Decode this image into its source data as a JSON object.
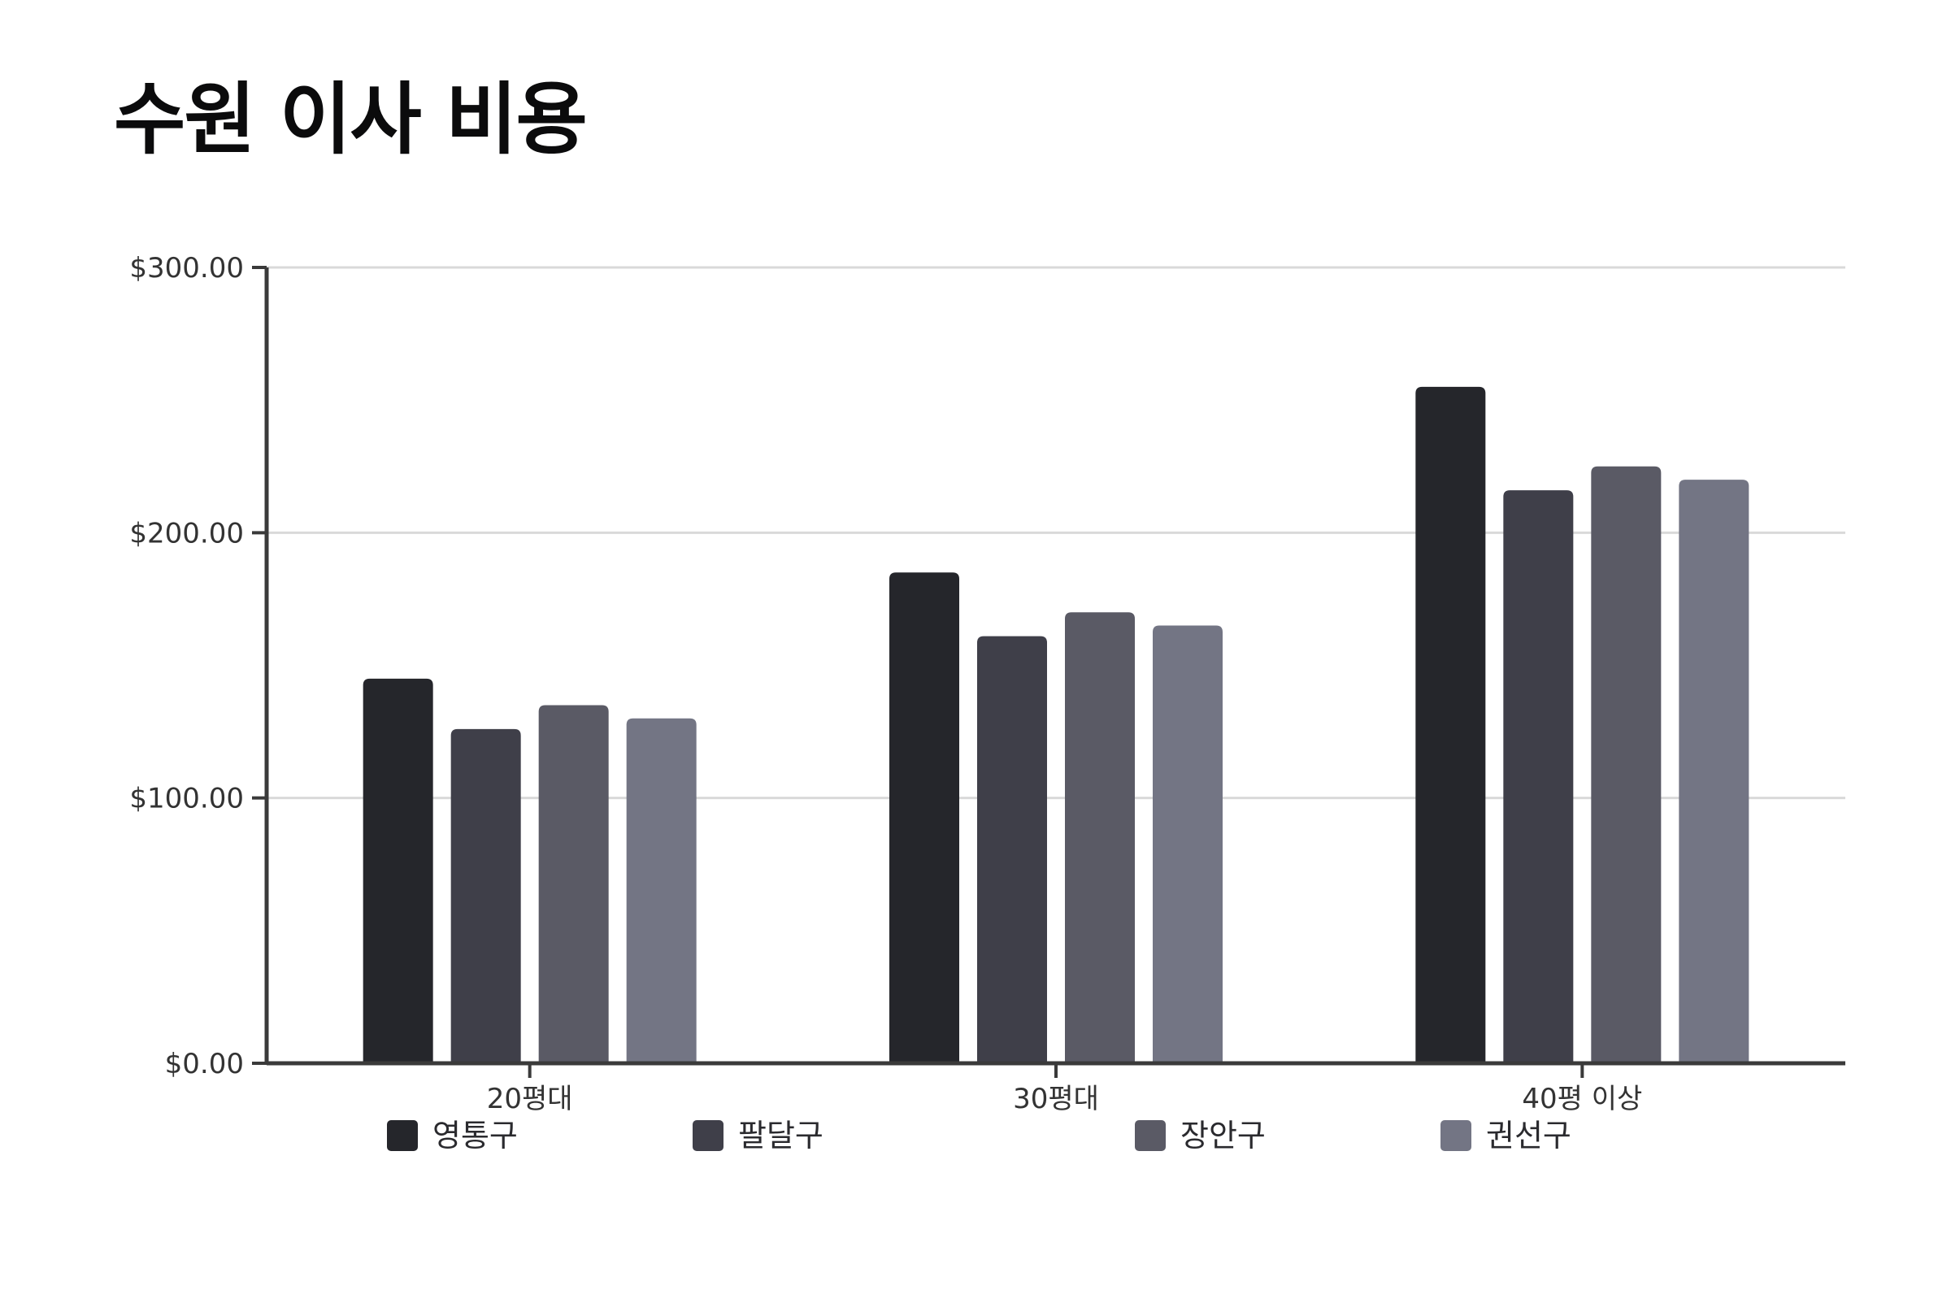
{
  "chart_data": {
    "type": "bar",
    "title": "수원 이사 비용",
    "xlabel": "",
    "ylabel": "",
    "categories": [
      "20평대",
      "30평대",
      "40평 이상"
    ],
    "series": [
      {
        "name": "영통구",
        "color": "#25262b",
        "values": [
          145,
          185,
          255
        ]
      },
      {
        "name": "팔달구",
        "color": "#3f3f49",
        "values": [
          126,
          161,
          216
        ]
      },
      {
        "name": "장안구",
        "color": "#5a5a65",
        "values": [
          135,
          170,
          225
        ]
      },
      {
        "name": "권선구",
        "color": "#737584",
        "values": [
          130,
          165,
          220
        ]
      }
    ],
    "ylim": [
      0,
      300
    ],
    "yticks": [
      {
        "value": 0,
        "label": "$0.00"
      },
      {
        "value": 100,
        "label": "$100.00"
      },
      {
        "value": 200,
        "label": "$200.00"
      },
      {
        "value": 300,
        "label": "$300.00"
      }
    ],
    "grid": true,
    "legend_position": "bottom"
  }
}
